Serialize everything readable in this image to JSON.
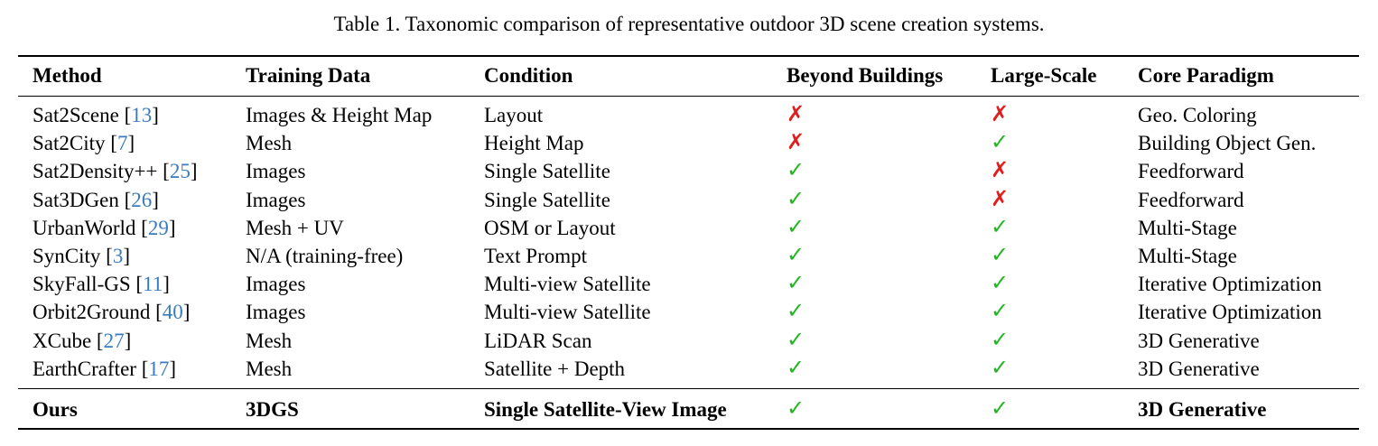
{
  "caption": "Table 1. Taxonomic comparison of representative outdoor 3D scene creation systems.",
  "headers": [
    "Method",
    "Training Data",
    "Condition",
    "Beyond Buildings",
    "Large-Scale",
    "Core Paradigm"
  ],
  "symbols": {
    "yes": "✓",
    "no": "✗"
  },
  "colors": {
    "yes": "#22b722",
    "no": "#e01e1e",
    "ref": "#3a7bbf"
  },
  "rows": [
    {
      "method": "Sat2Scene ",
      "ref": "13",
      "training_data": "Images & Height Map",
      "condition": "Layout",
      "beyond_buildings": "no",
      "large_scale": "no",
      "paradigm": "Geo. Coloring"
    },
    {
      "method": "Sat2City ",
      "ref": "7",
      "training_data": "Mesh",
      "condition": "Height Map",
      "beyond_buildings": "no",
      "large_scale": "yes",
      "paradigm": "Building Object Gen."
    },
    {
      "method": "Sat2Density++ ",
      "ref": "25",
      "training_data": "Images",
      "condition": "Single Satellite",
      "beyond_buildings": "yes",
      "large_scale": "no",
      "paradigm": "Feedforward"
    },
    {
      "method": "Sat3DGen ",
      "ref": "26",
      "training_data": "Images",
      "condition": "Single Satellite",
      "beyond_buildings": "yes",
      "large_scale": "no",
      "paradigm": "Feedforward"
    },
    {
      "method": "UrbanWorld ",
      "ref": "29",
      "training_data": "Mesh + UV",
      "condition": "OSM or Layout",
      "beyond_buildings": "yes",
      "large_scale": "yes",
      "paradigm": "Multi-Stage"
    },
    {
      "method": "SynCity ",
      "ref": "3",
      "training_data": "N/A (training-free)",
      "condition": "Text Prompt",
      "beyond_buildings": "yes",
      "large_scale": "yes",
      "paradigm": "Multi-Stage"
    },
    {
      "method": "SkyFall-GS ",
      "ref": "11",
      "training_data": "Images",
      "condition": "Multi-view Satellite",
      "beyond_buildings": "yes",
      "large_scale": "yes",
      "paradigm": "Iterative Optimization"
    },
    {
      "method": "Orbit2Ground ",
      "ref": "40",
      "training_data": "Images",
      "condition": "Multi-view Satellite",
      "beyond_buildings": "yes",
      "large_scale": "yes",
      "paradigm": "Iterative Optimization"
    },
    {
      "method": "XCube ",
      "ref": "27",
      "training_data": "Mesh",
      "condition": "LiDAR Scan",
      "beyond_buildings": "yes",
      "large_scale": "yes",
      "paradigm": "3D Generative"
    },
    {
      "method": "EarthCrafter ",
      "ref": "17",
      "training_data": "Mesh",
      "condition": "Satellite + Depth",
      "beyond_buildings": "yes",
      "large_scale": "yes",
      "paradigm": "3D Generative"
    }
  ],
  "ours": {
    "method": "Ours",
    "training_data": "3DGS",
    "condition": "Single Satellite-View Image",
    "beyond_buildings": "yes",
    "large_scale": "yes",
    "paradigm": "3D Generative"
  }
}
